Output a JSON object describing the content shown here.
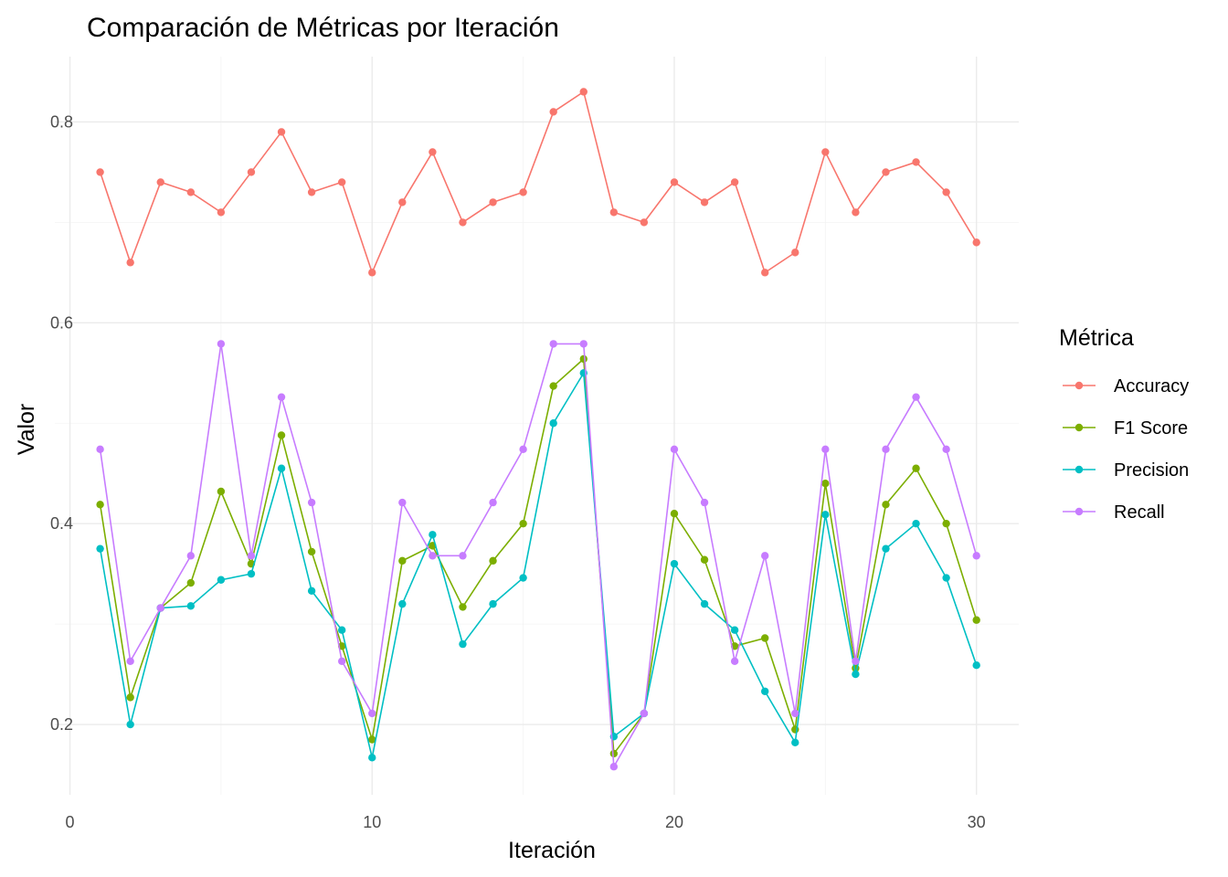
{
  "chart_data": {
    "type": "line",
    "title": "Comparación de Métricas por Iteración",
    "xlabel": "Iteración",
    "ylabel": "Valor",
    "xlim": [
      -0.5,
      31.4
    ],
    "ylim": [
      0.13,
      0.865
    ],
    "x_ticks": [
      0,
      10,
      20,
      30
    ],
    "y_ticks": [
      0.2,
      0.4,
      0.6,
      0.8
    ],
    "x_tick_labels": [
      "0",
      "10",
      "20",
      "30"
    ],
    "y_tick_labels": [
      "0.2",
      "0.4",
      "0.6",
      "0.8"
    ],
    "grid": true,
    "legend": {
      "title": "Métrica",
      "placement": "right"
    },
    "x": [
      1,
      2,
      3,
      4,
      5,
      6,
      7,
      8,
      9,
      10,
      11,
      12,
      13,
      14,
      15,
      16,
      17,
      18,
      19,
      20,
      21,
      22,
      23,
      24,
      25,
      26,
      27,
      28,
      29,
      30
    ],
    "series": [
      {
        "name": "Accuracy",
        "color": "#F8766D",
        "values": [
          0.75,
          0.66,
          0.74,
          0.73,
          0.71,
          0.75,
          0.79,
          0.73,
          0.74,
          0.65,
          0.72,
          0.77,
          0.7,
          0.72,
          0.73,
          0.81,
          0.83,
          0.71,
          0.7,
          0.74,
          0.72,
          0.74,
          0.65,
          0.67,
          0.77,
          0.71,
          0.75,
          0.76,
          0.73,
          0.68
        ]
      },
      {
        "name": "F1 Score",
        "color": "#7CAE00",
        "values": [
          0.419,
          0.227,
          0.316,
          0.341,
          0.432,
          0.36,
          0.488,
          0.372,
          0.278,
          0.185,
          0.363,
          0.378,
          0.317,
          0.363,
          0.4,
          0.537,
          0.564,
          0.171,
          0.211,
          0.41,
          0.364,
          0.278,
          0.286,
          0.195,
          0.44,
          0.256,
          0.419,
          0.455,
          0.4,
          0.304
        ]
      },
      {
        "name": "Precision",
        "color": "#00BFC4",
        "values": [
          0.375,
          0.2,
          0.316,
          0.318,
          0.344,
          0.35,
          0.455,
          0.333,
          0.294,
          0.167,
          0.32,
          0.389,
          0.28,
          0.32,
          0.346,
          0.5,
          0.55,
          0.188,
          0.211,
          0.36,
          0.32,
          0.294,
          0.233,
          0.182,
          0.409,
          0.25,
          0.375,
          0.4,
          0.346,
          0.259
        ]
      },
      {
        "name": "Recall",
        "color": "#C77CFF",
        "values": [
          0.474,
          0.263,
          0.316,
          0.368,
          0.579,
          0.368,
          0.526,
          0.421,
          0.263,
          0.211,
          0.421,
          0.368,
          0.368,
          0.421,
          0.474,
          0.579,
          0.579,
          0.158,
          0.211,
          0.474,
          0.421,
          0.263,
          0.368,
          0.211,
          0.474,
          0.263,
          0.474,
          0.526,
          0.474,
          0.368
        ]
      }
    ]
  }
}
